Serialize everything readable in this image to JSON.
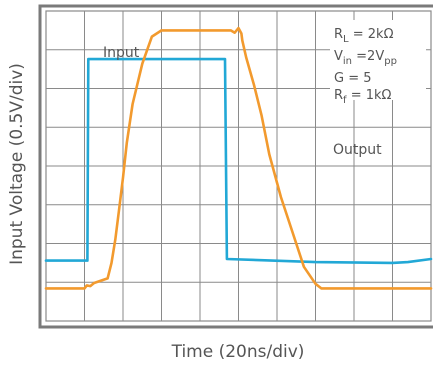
{
  "chart_data": {
    "type": "line",
    "title": "",
    "xlabel": "Time (20ns/div)",
    "ylabel": "Input Voltage (0.5V/div)",
    "grid": true,
    "xlim": [
      0,
      200
    ],
    "ylim": [
      0,
      4.0
    ],
    "x_unit": "ns",
    "y_unit": "V (screen divisions × 0.5V)",
    "conditions": {
      "rl": "R_L = 2kΩ",
      "vin": "V_in = 2V_pp",
      "gain": "G = 5",
      "rf": "R_f = 1kΩ"
    },
    "series": [
      {
        "name": "Input",
        "color": "#22a8d6",
        "x": [
          0,
          20,
          21.5,
          22,
          80,
          91,
          93,
          94,
          140,
          180,
          188,
          200
        ],
        "y": [
          0.78,
          0.78,
          0.78,
          3.38,
          3.38,
          3.38,
          3.38,
          0.8,
          0.76,
          0.75,
          0.76,
          0.8
        ]
      },
      {
        "name": "Output",
        "color": "#f29a2e",
        "x": [
          0,
          20,
          21.2,
          23,
          25,
          32,
          34,
          36,
          38,
          40,
          42,
          45,
          50,
          55,
          60,
          70,
          80,
          88,
          96,
          98,
          100,
          101.5,
          102,
          104,
          108,
          112,
          116,
          122,
          128,
          134,
          140,
          143,
          146,
          150,
          160,
          180,
          200
        ],
        "y": [
          0.42,
          0.42,
          0.46,
          0.45,
          0.49,
          0.55,
          0.75,
          1.05,
          1.45,
          1.85,
          2.3,
          2.8,
          3.32,
          3.67,
          3.75,
          3.75,
          3.75,
          3.75,
          3.75,
          3.72,
          3.78,
          3.71,
          3.62,
          3.4,
          3.05,
          2.65,
          2.15,
          1.6,
          1.15,
          0.7,
          0.48,
          0.42,
          0.42,
          0.42,
          0.42,
          0.42,
          0.42
        ]
      }
    ],
    "annotations": {
      "input_label": "Input",
      "output_label": "Output"
    }
  }
}
